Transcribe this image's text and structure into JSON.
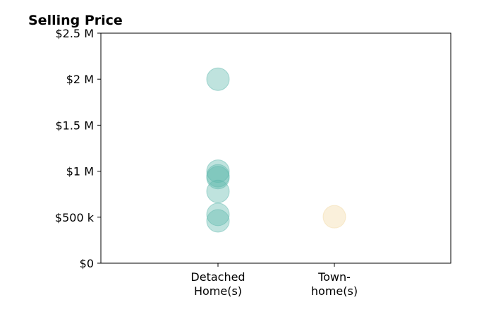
{
  "chart_data": {
    "type": "scatter",
    "title": "Selling Price",
    "xlabel": "",
    "ylabel": "",
    "categories": [
      [
        "Detached",
        "Home(s)"
      ],
      [
        "Town-",
        "home(s)"
      ]
    ],
    "series": [
      {
        "category_index": 0,
        "color": "#5fb8ad",
        "values": [
          2000000,
          1000000,
          950000,
          930000,
          780000,
          530000,
          460000
        ]
      },
      {
        "category_index": 1,
        "color": "#f2d9a6",
        "values": [
          505000
        ]
      }
    ],
    "ylim": [
      0,
      2500000
    ],
    "yticks": [
      {
        "value": 0,
        "label": "$0"
      },
      {
        "value": 500000,
        "label": "$500 k"
      },
      {
        "value": 1000000,
        "label": "$1 M"
      },
      {
        "value": 1500000,
        "label": "$1.5 M"
      },
      {
        "value": 2000000,
        "label": "$2 M"
      },
      {
        "value": 2500000,
        "label": "$2.5 M"
      }
    ],
    "grid": false,
    "legend": "none"
  }
}
